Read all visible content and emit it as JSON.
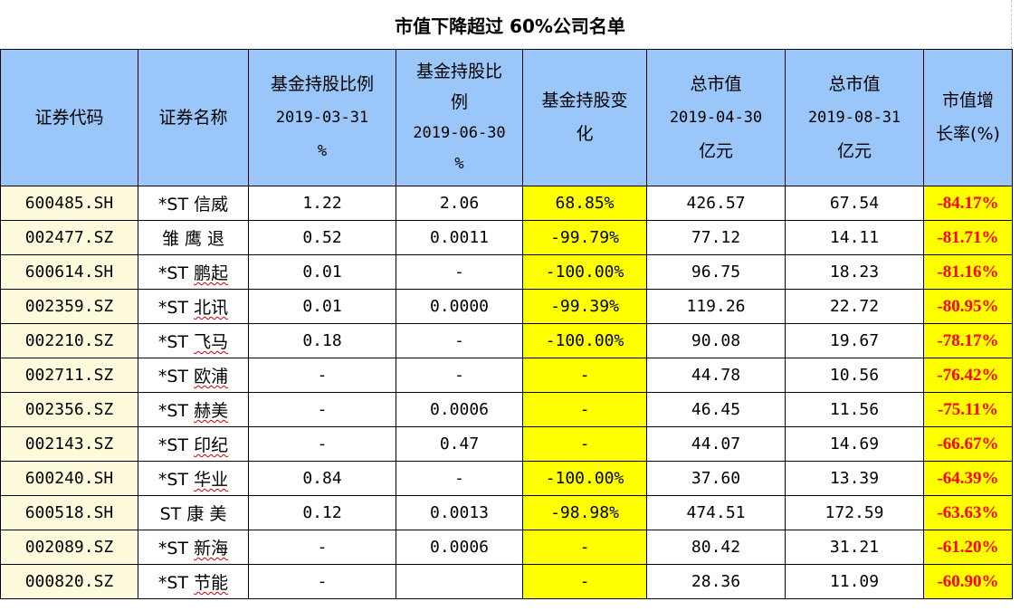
{
  "title": "市值下降超过 60%公司名单",
  "headers": {
    "code": "证券代码",
    "name": "证券名称",
    "fund_q1": [
      "基金持股比例",
      "2019-03-31",
      "%"
    ],
    "fund_q2": [
      "基金持股比",
      "例",
      "2019-06-30",
      "%"
    ],
    "fund_change": [
      "基金持股变",
      "化"
    ],
    "cap_apr": [
      "总市值",
      "2019-04-30",
      "亿元"
    ],
    "cap_aug": [
      "总市值",
      "2019-08-31",
      "亿元"
    ],
    "growth": [
      "市值增",
      "长率(%)"
    ]
  },
  "rows": [
    {
      "code": "600485.SH",
      "name": "*ST 信威",
      "fund_q1": "1.22",
      "fund_q2": "2.06",
      "fund_change": "68.85%",
      "cap_apr": "426.57",
      "cap_aug": "67.54",
      "growth": "-84.17%"
    },
    {
      "code": "002477.SZ",
      "name": "雏 鹰 退",
      "fund_q1": "0.52",
      "fund_q2": "0.0011",
      "fund_change": "-99.79%",
      "cap_apr": "77.12",
      "cap_aug": "14.11",
      "growth": "-81.71%"
    },
    {
      "code": "600614.SH",
      "name": "*ST 鹏起",
      "fund_q1": "0.01",
      "fund_q2": "-",
      "fund_change": "-100.00%",
      "cap_apr": "96.75",
      "cap_aug": "18.23",
      "growth": "-81.16%"
    },
    {
      "code": "002359.SZ",
      "name": "*ST 北讯",
      "fund_q1": "0.01",
      "fund_q2": "0.0000",
      "fund_change": "-99.39%",
      "cap_apr": "119.26",
      "cap_aug": "22.72",
      "growth": "-80.95%"
    },
    {
      "code": "002210.SZ",
      "name": "*ST 飞马",
      "fund_q1": "0.18",
      "fund_q2": "-",
      "fund_change": "-100.00%",
      "cap_apr": "90.08",
      "cap_aug": "19.67",
      "growth": "-78.17%"
    },
    {
      "code": "002711.SZ",
      "name": "*ST 欧浦",
      "fund_q1": "-",
      "fund_q2": "-",
      "fund_change": "-",
      "cap_apr": "44.78",
      "cap_aug": "10.56",
      "growth": "-76.42%"
    },
    {
      "code": "002356.SZ",
      "name": "*ST 赫美",
      "fund_q1": "-",
      "fund_q2": "0.0006",
      "fund_change": "-",
      "cap_apr": "46.45",
      "cap_aug": "11.56",
      "growth": "-75.11%"
    },
    {
      "code": "002143.SZ",
      "name": "*ST 印纪",
      "fund_q1": "-",
      "fund_q2": "0.47",
      "fund_change": "-",
      "cap_apr": "44.07",
      "cap_aug": "14.69",
      "growth": "-66.67%"
    },
    {
      "code": "600240.SH",
      "name": "*ST 华业",
      "fund_q1": "0.84",
      "fund_q2": "-",
      "fund_change": "-100.00%",
      "cap_apr": "37.60",
      "cap_aug": "13.39",
      "growth": "-64.39%"
    },
    {
      "code": "600518.SH",
      "name": "ST 康 美",
      "fund_q1": "0.12",
      "fund_q2": "0.0013",
      "fund_change": "-98.98%",
      "cap_apr": "474.51",
      "cap_aug": "172.59",
      "growth": "-63.63%"
    },
    {
      "code": "002089.SZ",
      "name": "*ST 新海",
      "fund_q1": "-",
      "fund_q2": "0.0006",
      "fund_change": "-",
      "cap_apr": "80.42",
      "cap_aug": "31.21",
      "growth": "-61.20%"
    },
    {
      "code": "000820.SZ",
      "name": "*ST 节能",
      "fund_q1": "-",
      "fund_q2": "",
      "fund_change": "-",
      "cap_apr": "28.36",
      "cap_aug": "11.09",
      "growth": "-60.90%"
    }
  ],
  "colors": {
    "header_bg": "#9bc6f9",
    "code_bg": "#fdfbdc",
    "highlight": "#ffff00",
    "negative_text": "#ff0000"
  }
}
